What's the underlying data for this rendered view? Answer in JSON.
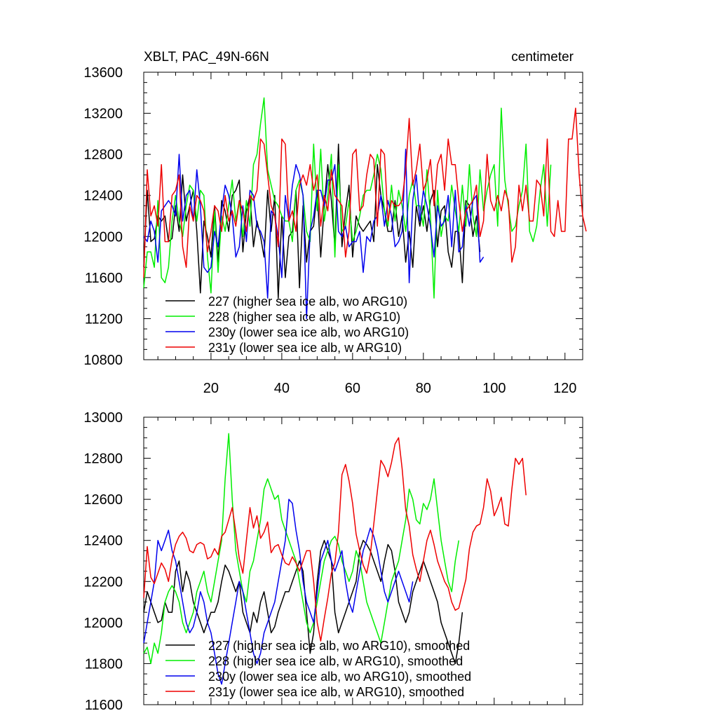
{
  "chart_data": [
    {
      "type": "line",
      "title": "XBLT, PAC_49N-66N",
      "units": "centimeter",
      "xlim": [
        1,
        125
      ],
      "ylim": [
        10800,
        13600
      ],
      "yticks": [
        10800,
        11200,
        11600,
        12000,
        12400,
        12800,
        13200,
        13600
      ],
      "ytick_labels": [
        "10800",
        "11200",
        "11600",
        "12000",
        "12400",
        "12800",
        "13200",
        "13600"
      ],
      "xticks": [
        20,
        40,
        60,
        80,
        100,
        120
      ],
      "xtick_labels": [
        "20",
        "40",
        "60",
        "80",
        "100",
        "120"
      ],
      "series": [
        {
          "name": "227 (higher sea ice alb, wo ARG10)",
          "color": "#000000",
          "values": [
            11700,
            12450,
            11950,
            11980,
            12200,
            12150,
            12200,
            11950,
            11980,
            12300,
            12050,
            12600,
            12150,
            12300,
            12450,
            12050,
            11450,
            12150,
            12000,
            11800,
            12300,
            11750,
            12350,
            12250,
            12050,
            12400,
            12450,
            12550,
            11850,
            12250,
            12400,
            11900,
            12150,
            12000,
            11800,
            12450,
            12050,
            12400,
            11400,
            12200,
            11600,
            12000,
            12050,
            12450,
            11500,
            12300,
            11750,
            12050,
            12100,
            12450,
            11800,
            12300,
            12700,
            12350,
            11900,
            12900,
            11900,
            12250,
            12500,
            11800,
            12200,
            12100,
            12050,
            12100,
            12150,
            11950,
            12700,
            12400,
            12250,
            12050,
            12050,
            12350,
            12000,
            12200,
            11750,
            12050,
            11700,
            12300,
            12100,
            12300,
            12050,
            12350,
            12450,
            11900,
            12250,
            12300,
            11850,
            11700,
            12050,
            12050,
            11550,
            12350,
            12300,
            12000,
            12200,
            11850
          ]
        },
        {
          "name": "228 (higher sea ice alb, w ARG10)",
          "color": "#00ee00",
          "values": [
            11500,
            11850,
            11850,
            11700,
            12350,
            11600,
            11550,
            11700,
            12150,
            12400,
            12150,
            12000,
            12300,
            12500,
            12450,
            12150,
            12450,
            12400,
            11800,
            11450,
            12250,
            11650,
            12200,
            12050,
            12300,
            12550,
            12150,
            12350,
            12000,
            12350,
            12100,
            12700,
            12800,
            13100,
            13350,
            12650,
            12500,
            12350,
            12300,
            12200,
            12150,
            12150,
            11950,
            12450,
            12550,
            12400,
            12050,
            11950,
            12900,
            12250,
            12850,
            12150,
            12400,
            12800,
            11800,
            12700,
            12050,
            12100,
            12350,
            11950,
            12050,
            12200,
            12400,
            12450,
            12450,
            12600,
            12800,
            12650,
            12250,
            12100,
            12500,
            12150,
            12450,
            12300,
            12050,
            12400,
            12550,
            12300,
            12300,
            12100,
            12650,
            12200,
            11400,
            12450,
            12000,
            12200,
            12150,
            12500,
            12250,
            12050,
            12500,
            12100,
            12700,
            12200,
            12000,
            12650,
            12250,
            12450,
            12600,
            12700,
            12100,
            13250,
            12550,
            12300,
            12050,
            12100,
            12300,
            12450,
            12900,
            12050,
            11950,
            12100,
            12450,
            12700,
            12100,
            12700
          ]
        },
        {
          "name": "230y (lower sea ice alb, wo ARG10)",
          "color": "#0000ee",
          "values": [
            12000,
            11950,
            12150,
            12050,
            11750,
            12250,
            12300,
            12350,
            12300,
            12200,
            12800,
            12150,
            12400,
            12450,
            12150,
            12650,
            12300,
            11700,
            11650,
            11700,
            12050,
            11900,
            12250,
            12500,
            12400,
            12200,
            11800,
            11900,
            12300,
            11950,
            12450,
            12400,
            12100,
            12050,
            11950,
            11400,
            12250,
            12200,
            12000,
            11600,
            12400,
            12150,
            12500,
            12700,
            12600,
            12400,
            11200,
            12050,
            12200,
            12450,
            12450,
            12300,
            12550,
            12550,
            12700,
            12050,
            12000,
            12100,
            11900,
            11950,
            11950,
            12050,
            11650,
            12000,
            11950,
            12150,
            12200,
            12400,
            12100,
            12350,
            12200,
            11900,
            11950,
            12050,
            12850,
            11550,
            12350,
            12600,
            12150,
            12450,
            12300,
            12100,
            11800,
            12300,
            12100,
            12150,
            12400,
            11900,
            12450,
            11850,
            11900,
            12300,
            12100,
            12350,
            12400,
            11750,
            11800
          ]
        },
        {
          "name": "231y (lower sea ice alb, w ARG10)",
          "color": "#ee0000",
          "values": [
            11600,
            12650,
            12200,
            12300,
            12100,
            12700,
            11950,
            11950,
            12400,
            12450,
            12600,
            11900,
            11700,
            12300,
            12150,
            12400,
            12350,
            12250,
            11850,
            12050,
            12300,
            12250,
            12050,
            12400,
            12150,
            12250,
            12100,
            12350,
            12250,
            12050,
            12400,
            12350,
            12450,
            12950,
            12900,
            12600,
            12300,
            12200,
            11900,
            12950,
            12900,
            12150,
            12250,
            12050,
            12500,
            12600,
            12500,
            12700,
            12450,
            12600,
            12100,
            12400,
            12250,
            12650,
            12400,
            12350,
            12300,
            11800,
            12050,
            12800,
            12850,
            12250,
            12300,
            12600,
            12800,
            12750,
            12100,
            12850,
            12800,
            12150,
            12350,
            12300,
            12300,
            12350,
            12650,
            13150,
            12500,
            12650,
            12900,
            12450,
            12550,
            12750,
            12300,
            12700,
            12800,
            12450,
            12950,
            12700,
            12700,
            12350,
            12050,
            12250,
            12300,
            12350,
            12500,
            12000,
            12150,
            12800,
            12350,
            12250,
            12400,
            12250,
            12450,
            12350,
            11750,
            11900,
            12500,
            12250,
            12500,
            12150,
            12150,
            12550,
            12500,
            12200,
            12950,
            12050,
            12000,
            12350,
            12050,
            12050,
            12950,
            12950,
            13250,
            12600,
            12200,
            12050
          ]
        }
      ],
      "legend": [
        "227 (higher sea ice alb, wo ARG10)",
        "228 (higher sea ice alb, w ARG10)",
        "230y (lower sea ice alb, wo ARG10)",
        "231y (lower sea ice alb, w ARG10)"
      ]
    },
    {
      "type": "line",
      "xlim": [
        1,
        125
      ],
      "ylim": [
        11600,
        13000
      ],
      "yticks": [
        11600,
        11800,
        12000,
        12200,
        12400,
        12600,
        12800,
        13000
      ],
      "ytick_labels": [
        "11600",
        "11800",
        "12000",
        "12200",
        "12400",
        "12600",
        "12800",
        "13000"
      ],
      "xticks": [
        20,
        40,
        60,
        80,
        100,
        120
      ],
      "series": [
        {
          "name": "227 (higher sea ice alb, wo ARG10), smoothed",
          "color": "#000000",
          "values": [
            12050,
            12150,
            12100,
            12050,
            12000,
            12010,
            12100,
            12050,
            12050,
            12250,
            12300,
            12150,
            12250,
            12200,
            12100,
            12050,
            12000,
            11950,
            12000,
            12050,
            12050,
            12100,
            12200,
            12280,
            12250,
            12200,
            12150,
            12200,
            12050,
            12000,
            11950,
            12050,
            12000,
            12100,
            12150,
            12050,
            11950,
            11980,
            12050,
            12100,
            12150,
            12150,
            12200,
            12250,
            12300,
            12250,
            12050,
            11850,
            11950,
            12200,
            12350,
            12400,
            12350,
            12300,
            12050,
            11950,
            12000,
            12050,
            12100,
            12150,
            12200,
            12350,
            12400,
            12380,
            12350,
            12300,
            12250,
            12200,
            12300,
            12380,
            12350,
            12250,
            12100,
            12050,
            12000,
            12050,
            12150,
            12200,
            12250,
            12300,
            12250,
            12200,
            12150,
            12100,
            12000,
            11950,
            11900,
            11850,
            11800,
            11900,
            12050
          ]
        },
        {
          "name": "228 (higher sea ice alb, w ARG10), smoothed",
          "color": "#00ee00",
          "values": [
            11850,
            11880,
            11800,
            11900,
            11850,
            11950,
            12100,
            12150,
            12180,
            12150,
            12100,
            12000,
            11950,
            12000,
            12050,
            12150,
            12200,
            12250,
            12150,
            12100,
            12200,
            12300,
            12400,
            12700,
            12920,
            12600,
            12350,
            12250,
            12150,
            12100,
            12250,
            12300,
            12400,
            12500,
            12650,
            12700,
            12650,
            12600,
            12620,
            12500,
            12450,
            12400,
            12350,
            12300,
            12200,
            12100,
            12000,
            11950,
            12000,
            12100,
            12200,
            12300,
            12350,
            12400,
            12420,
            12380,
            12300,
            12250,
            12200,
            12250,
            12350,
            12300,
            12200,
            12100,
            12050,
            12000,
            11950,
            11900,
            12000,
            12100,
            12200,
            12250,
            12300,
            12400,
            12500,
            12650,
            12600,
            12500,
            12480,
            12580,
            12550,
            12600,
            12700,
            12550,
            12400,
            12300,
            12200,
            12150,
            12300,
            12400
          ]
        },
        {
          "name": "230y (lower sea ice alb, wo ARG10), smoothed",
          "color": "#0000ee",
          "values": [
            11900,
            12000,
            12100,
            12200,
            12400,
            12350,
            12400,
            12450,
            12350,
            12300,
            12200,
            12100,
            12000,
            11950,
            11980,
            12050,
            12150,
            12100,
            12000,
            11950,
            11850,
            11750,
            11700,
            11800,
            11900,
            12000,
            12100,
            12200,
            12150,
            12050,
            11950,
            11850,
            11800,
            11850,
            11950,
            12000,
            12050,
            12100,
            12200,
            12300,
            12400,
            12600,
            12580,
            12450,
            12350,
            12200,
            12100,
            12050,
            12000,
            12150,
            12300,
            12350,
            12400,
            12300,
            12250,
            12300,
            12350,
            12200,
            12100,
            12050,
            12150,
            12250,
            12350,
            12400,
            12460,
            12420,
            12350,
            12250,
            12150,
            12100,
            12150,
            12200,
            12250,
            12200,
            12150,
            12100,
            12200
          ]
        },
        {
          "name": "231y (lower sea ice alb, w ARG10), smoothed",
          "color": "#ee0000",
          "values": [
            12120,
            12370,
            12220,
            12190,
            12240,
            12290,
            12260,
            12200,
            12310,
            12380,
            12420,
            12440,
            12410,
            12350,
            12340,
            12380,
            12390,
            12380,
            12310,
            12320,
            12360,
            12330,
            12420,
            12440,
            12500,
            12560,
            12440,
            12310,
            12240,
            12400,
            12560,
            12460,
            12520,
            12410,
            12440,
            12490,
            12340,
            12370,
            12380,
            12330,
            12290,
            12280,
            12320,
            12290,
            12250,
            12300,
            12350,
            12350,
            12200,
            12000,
            11910,
            12020,
            12120,
            12240,
            12290,
            12440,
            12720,
            12770,
            12690,
            12580,
            12430,
            12350,
            12280,
            12240,
            12330,
            12480,
            12640,
            12790,
            12760,
            12710,
            12780,
            12870,
            12900,
            12750,
            12550,
            12470,
            12330,
            12260,
            12200,
            12300,
            12400,
            12450,
            12380,
            12300,
            12250,
            12200,
            12170,
            12100,
            12060,
            12070,
            12140,
            12210,
            12360,
            12440,
            12470,
            12480,
            12560,
            12700,
            12640,
            12520,
            12560,
            12610,
            12480,
            12470,
            12650,
            12800,
            12770,
            12800,
            12620
          ]
        }
      ],
      "legend": [
        "227 (higher sea ice alb, wo ARG10), smoothed",
        "228 (higher sea ice alb, w ARG10), smoothed",
        "230y (lower sea ice alb, wo ARG10), smoothed",
        "231y (lower sea ice alb, w ARG10), smoothed"
      ]
    }
  ]
}
